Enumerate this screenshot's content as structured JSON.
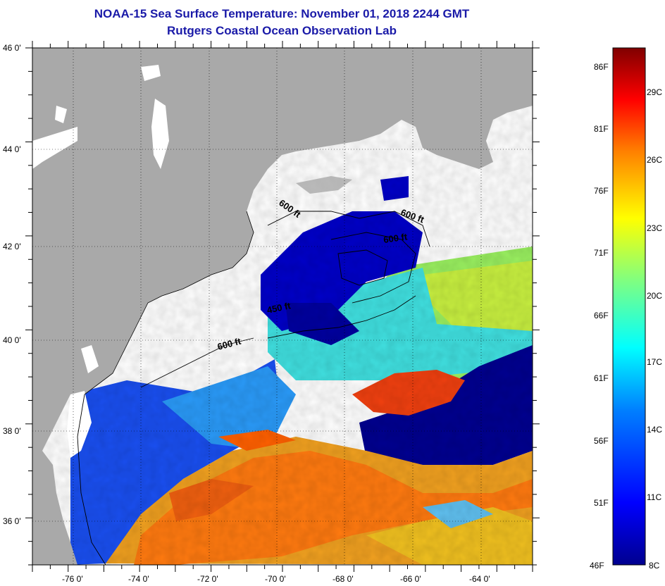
{
  "header": {
    "title": "NOAA-15 Sea Surface Temperature:  November 01, 2018 2244 GMT",
    "subtitle": "Rutgers Coastal Ocean Observation Lab"
  },
  "map": {
    "lon_range": [
      -77,
      -63
    ],
    "lat_range": [
      35,
      46
    ],
    "lat_labels": [
      "46 0'",
      "44 0'",
      "42 0'",
      "40 0'",
      "38 0'",
      "36 0'"
    ],
    "lon_labels": [
      "-76 0'",
      "-74 0'",
      "-72 0'",
      "-70 0'",
      "-68 0'",
      "-66 0'",
      "-64 0'"
    ],
    "contour_labels": [
      "600 ft",
      "600 ft",
      "600 ft",
      "450 ft",
      "600 ft"
    ],
    "colors": {
      "land": "#a9a9a9",
      "cloud": "#ffffff",
      "frame": "#000000"
    }
  },
  "colorbar": {
    "range_f": [
      46,
      90
    ],
    "range_c": [
      8,
      32
    ],
    "fahrenheit_labels": [
      "86F",
      "81F",
      "76F",
      "71F",
      "66F",
      "61F",
      "56F",
      "51F",
      "46F"
    ],
    "celsius_labels": [
      "29C",
      "26C",
      "23C",
      "20C",
      "17C",
      "14C",
      "11C",
      "8C"
    ],
    "colors": [
      "#00008f",
      "#0000ff",
      "#0080ff",
      "#00ffff",
      "#80ff80",
      "#ffff00",
      "#ff8000",
      "#ff0000",
      "#800000"
    ]
  }
}
